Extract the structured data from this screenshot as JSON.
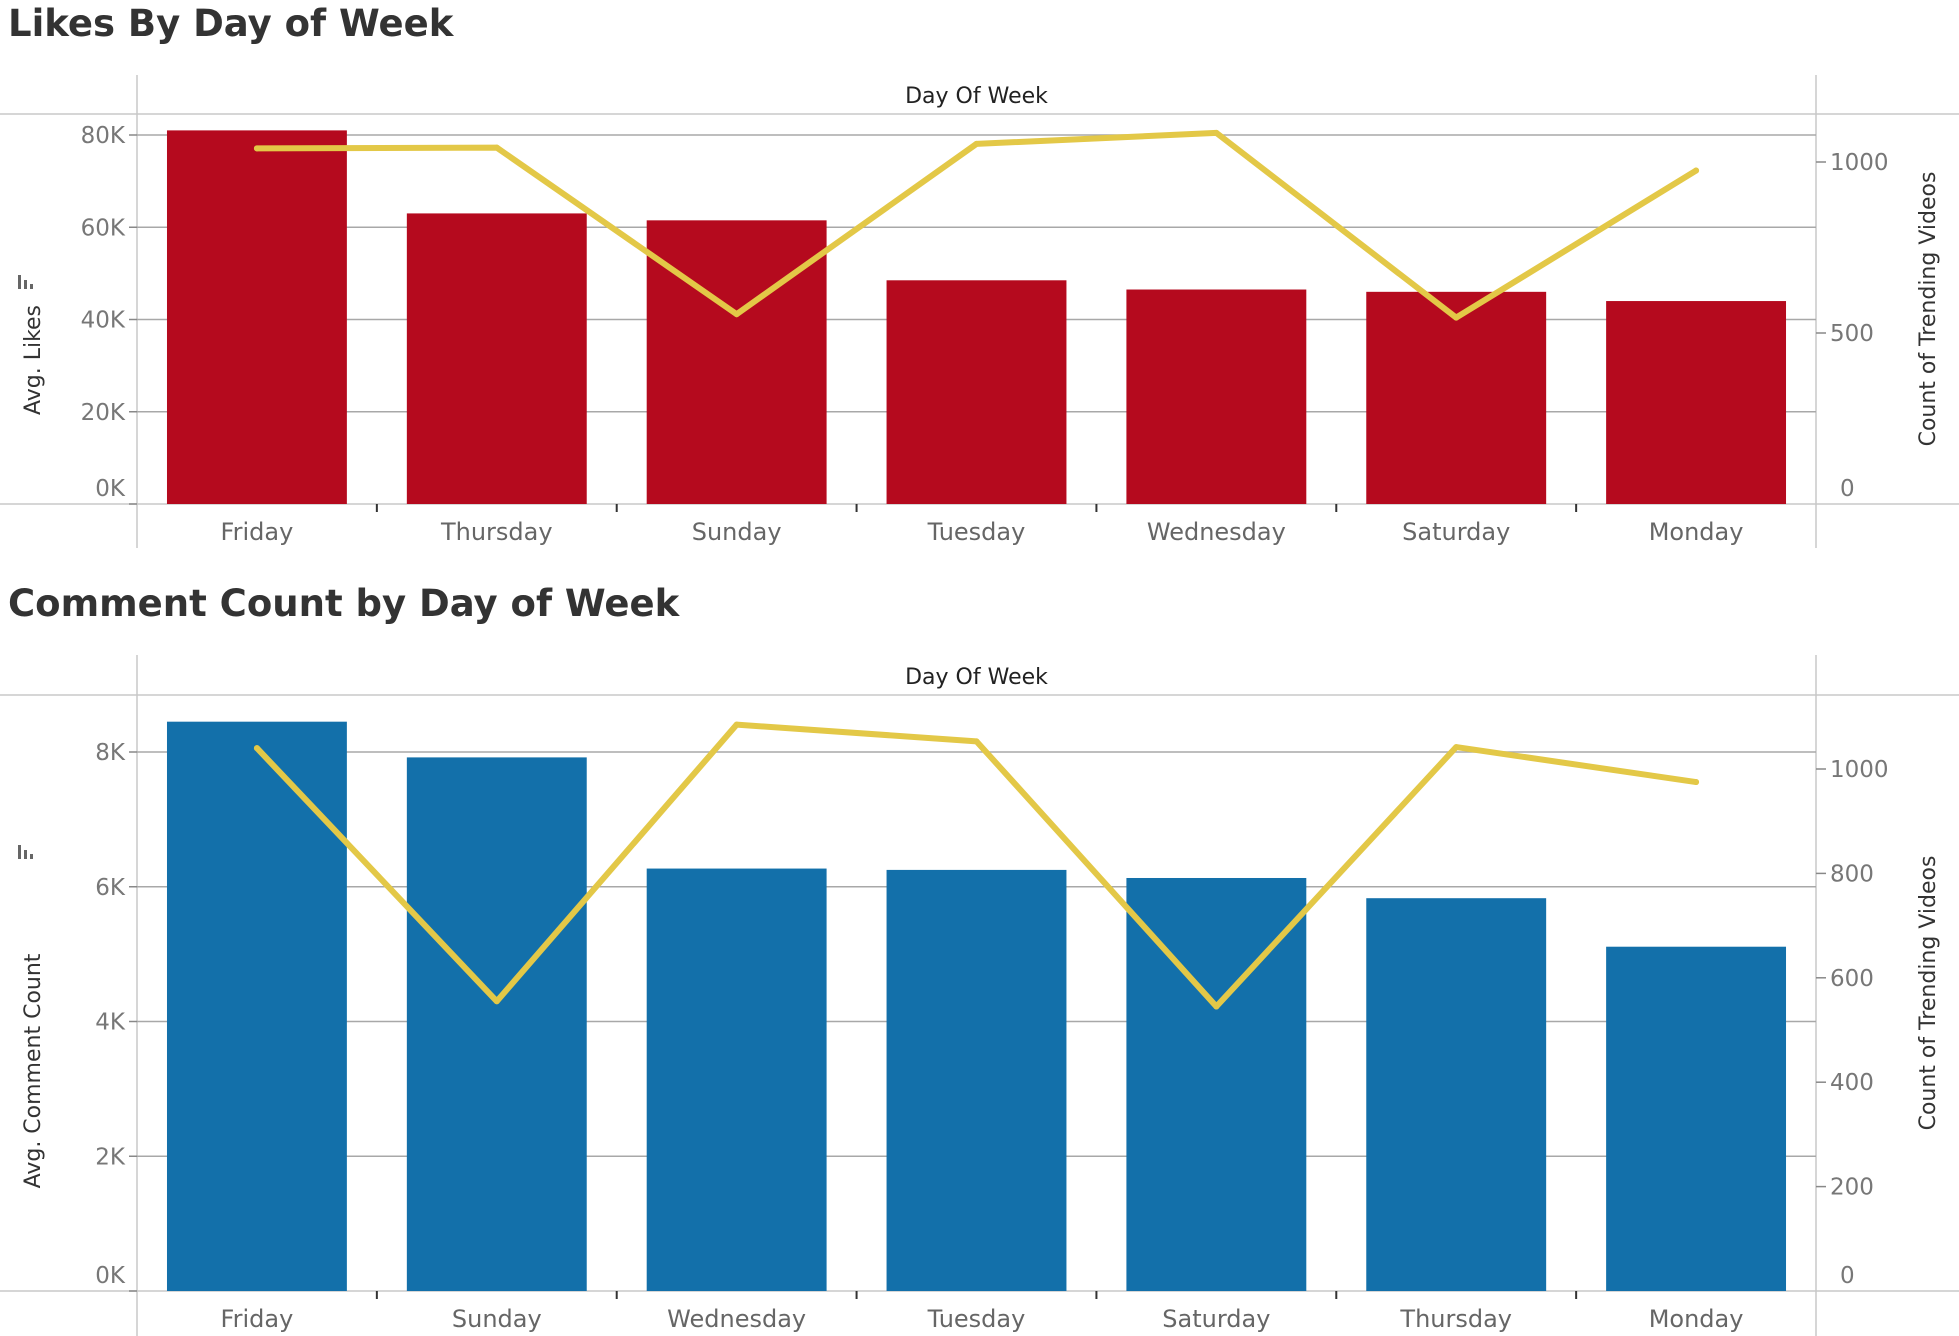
{
  "chart_data": [
    {
      "type": "bar",
      "title": "Likes By Day of Week",
      "header": "Day Of Week",
      "ylabel": "Avg. Likes",
      "y2label": "Count of Trending Videos",
      "categories": [
        "Friday",
        "Thursday",
        "Sunday",
        "Tuesday",
        "Wednesday",
        "Saturday",
        "Monday"
      ],
      "ylim": [
        0,
        80000
      ],
      "y2lim": [
        0,
        1000
      ],
      "yticks": [
        0,
        20000,
        40000,
        60000,
        80000
      ],
      "ytick_labels": [
        "0K",
        "20K",
        "40K",
        "60K",
        "80K"
      ],
      "y2ticks": [
        0,
        500,
        1000
      ],
      "y2tick_labels": [
        "0",
        "500",
        "1000"
      ],
      "bar_color": "#b50a1e",
      "line_color": "#e3c847",
      "grid": true,
      "series": [
        {
          "kind": "bar",
          "axis": "left",
          "values": [
            81000,
            63000,
            61500,
            48500,
            46500,
            46000,
            44000
          ]
        },
        {
          "kind": "line",
          "axis": "right",
          "values": [
            1040,
            1042,
            555,
            1053,
            1085,
            545,
            975
          ]
        }
      ]
    },
    {
      "type": "bar",
      "title": "Comment Count by Day of Week",
      "header": "Day Of Week",
      "ylabel": "Avg. Comment Count",
      "y2label": "Count of Trending Videos",
      "categories": [
        "Friday",
        "Sunday",
        "Wednesday",
        "Tuesday",
        "Saturday",
        "Thursday",
        "Monday"
      ],
      "ylim": [
        0,
        8000
      ],
      "y2lim": [
        0,
        1000
      ],
      "yticks": [
        0,
        2000,
        4000,
        6000,
        8000
      ],
      "ytick_labels": [
        "0K",
        "2K",
        "4K",
        "6K",
        "8K"
      ],
      "y2ticks": [
        0,
        200,
        400,
        600,
        800,
        1000
      ],
      "y2tick_labels": [
        "0",
        "200",
        "400",
        "600",
        "800",
        "1000"
      ],
      "bar_color": "#1370aa",
      "line_color": "#e3c847",
      "grid": true,
      "series": [
        {
          "kind": "bar",
          "axis": "left",
          "values": [
            8450,
            7920,
            6270,
            6250,
            6130,
            5830,
            5110
          ]
        },
        {
          "kind": "line",
          "axis": "right",
          "values": [
            1040,
            555,
            1085,
            1053,
            545,
            1042,
            975
          ]
        }
      ]
    }
  ]
}
